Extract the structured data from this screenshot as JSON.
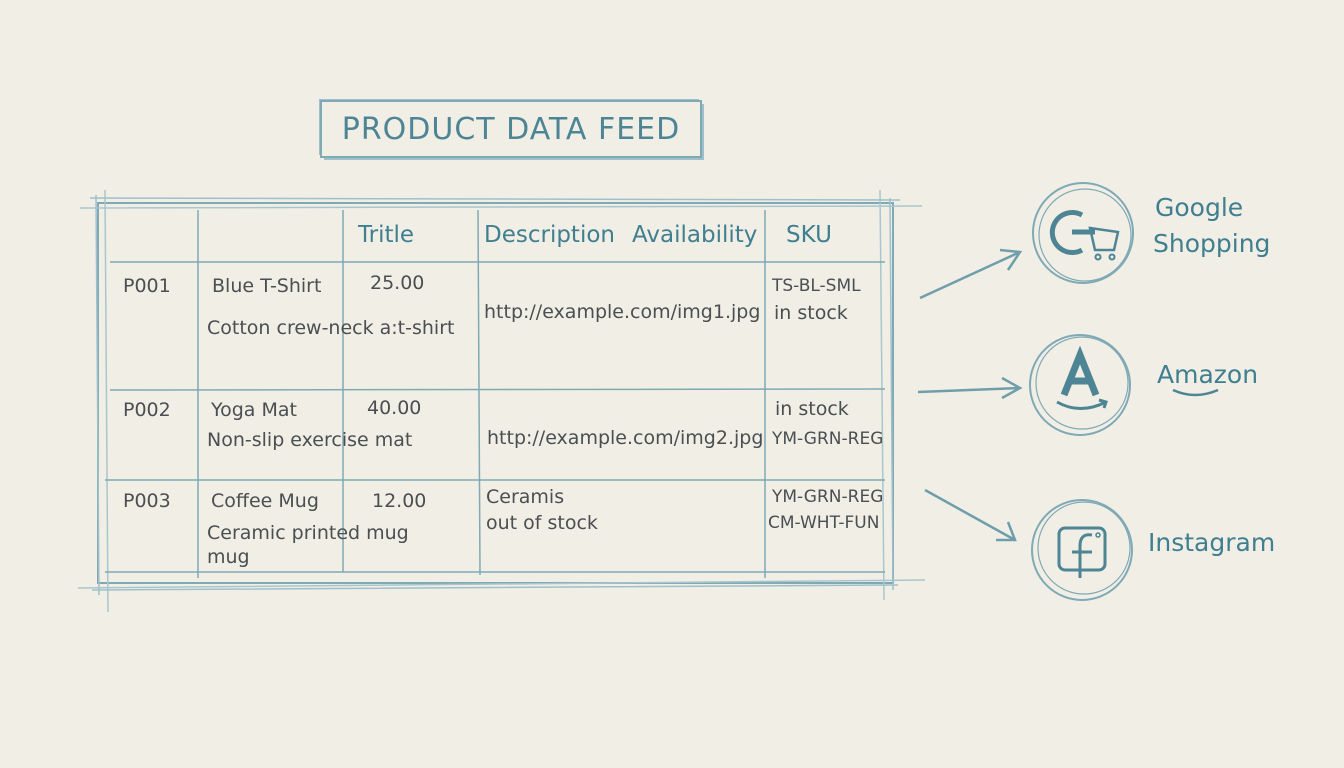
{
  "title": "PRODUCT DATA FEED",
  "table": {
    "headers": [
      "",
      "",
      "Tritle",
      "Description",
      "Availability",
      "SKU"
    ],
    "rows": [
      {
        "id": "P001",
        "name": "Blue T-Shirt",
        "price": "25.00",
        "desc": "Cotton crew-neck a:t-shirt",
        "image": "http://example.com/img1.jpg",
        "col5_line1": "TS-BL-SML",
        "col5_line2": "in stock"
      },
      {
        "id": "P002",
        "name": "Yoga Mat",
        "price": "40.00",
        "desc": "Non-slip exercise mat",
        "image": "http://example.com/img2.jpg",
        "col5_line1": "in stock",
        "col5_line2": "YM-GRN-REG"
      },
      {
        "id": "P003",
        "name": "Coffee Mug",
        "price": "12.00",
        "desc": "Ceramic printed mug",
        "desc2": "mug",
        "image": "Ceramis",
        "image2": "out of stock",
        "col5_line1": "YM-GRN-REG",
        "col5_line2": "CM-WHT-FUN"
      }
    ]
  },
  "channels": [
    {
      "label_line1": "Google",
      "label_line2": "Shopping",
      "icon": "google-shopping-cart-icon"
    },
    {
      "label_line1": "Amazon",
      "icon": "amazon-icon"
    },
    {
      "label_line1": "Instagram",
      "icon": "facebook-icon"
    }
  ],
  "colors": {
    "ink": "#4d8595",
    "paper": "#f1eee6",
    "text": "#4a4f52"
  }
}
